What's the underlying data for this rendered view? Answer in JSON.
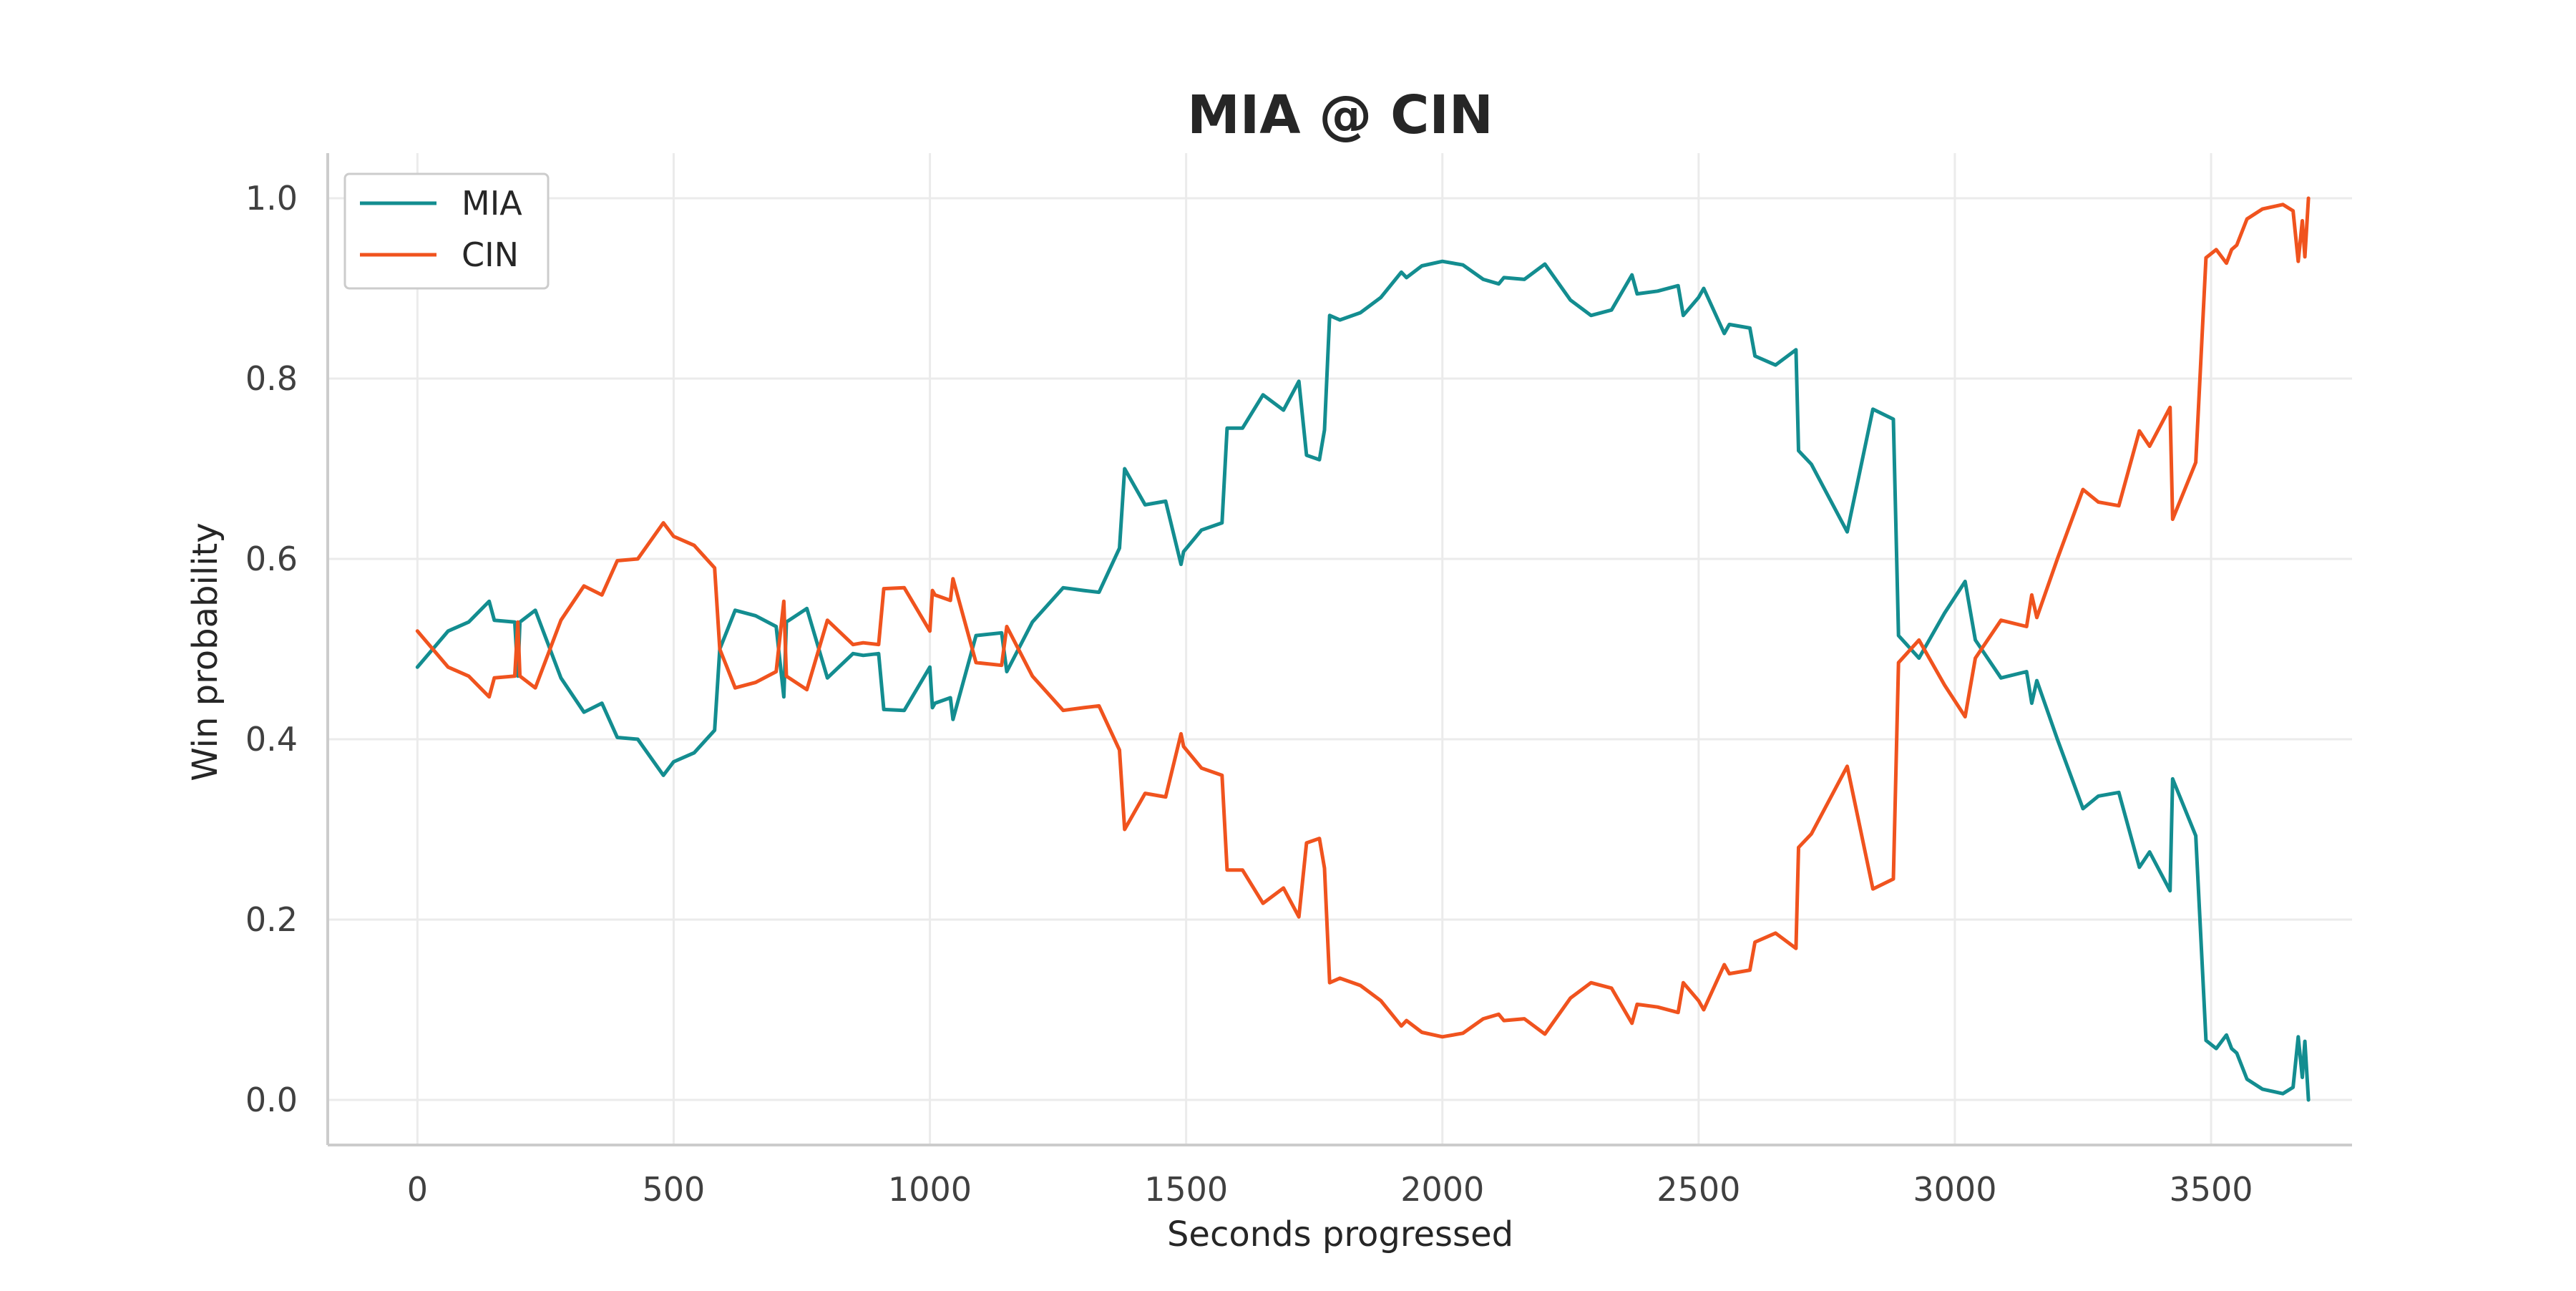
{
  "chart_data": {
    "type": "line",
    "title": "MIA @ CIN",
    "xlabel": "Seconds progressed",
    "ylabel": "Win probability",
    "xlim": [
      -175,
      3775
    ],
    "ylim": [
      -0.05,
      1.05
    ],
    "x_ticks": [
      0,
      500,
      1000,
      1500,
      2000,
      2500,
      3000,
      3500
    ],
    "x_tick_labels": [
      "0",
      "500",
      "1000",
      "1500",
      "2000",
      "2500",
      "3000",
      "3500"
    ],
    "y_ticks": [
      0.0,
      0.2,
      0.4,
      0.6,
      0.8,
      1.0
    ],
    "y_tick_labels": [
      "0.0",
      "0.2",
      "0.4",
      "0.6",
      "0.8",
      "1.0"
    ],
    "grid": true,
    "legend_position": "top-left",
    "series": [
      {
        "name": "MIA",
        "color": "#138d90",
        "points": [
          [
            0,
            0.48
          ],
          [
            60,
            0.52
          ],
          [
            100,
            0.53
          ],
          [
            140,
            0.553
          ],
          [
            150,
            0.532
          ],
          [
            190,
            0.53
          ],
          [
            196,
            0.47
          ],
          [
            200,
            0.53
          ],
          [
            230,
            0.543
          ],
          [
            280,
            0.468
          ],
          [
            325,
            0.43
          ],
          [
            360,
            0.44
          ],
          [
            390,
            0.402
          ],
          [
            430,
            0.4
          ],
          [
            480,
            0.36
          ],
          [
            500,
            0.375
          ],
          [
            540,
            0.385
          ],
          [
            580,
            0.41
          ],
          [
            590,
            0.5
          ],
          [
            620,
            0.543
          ],
          [
            660,
            0.537
          ],
          [
            700,
            0.525
          ],
          [
            715,
            0.447
          ],
          [
            720,
            0.53
          ],
          [
            760,
            0.545
          ],
          [
            800,
            0.468
          ],
          [
            850,
            0.495
          ],
          [
            870,
            0.493
          ],
          [
            900,
            0.495
          ],
          [
            910,
            0.433
          ],
          [
            950,
            0.432
          ],
          [
            1000,
            0.48
          ],
          [
            1005,
            0.435
          ],
          [
            1010,
            0.44
          ],
          [
            1040,
            0.446
          ],
          [
            1045,
            0.422
          ],
          [
            1090,
            0.515
          ],
          [
            1140,
            0.518
          ],
          [
            1150,
            0.475
          ],
          [
            1200,
            0.53
          ],
          [
            1260,
            0.568
          ],
          [
            1300,
            0.565
          ],
          [
            1330,
            0.563
          ],
          [
            1370,
            0.612
          ],
          [
            1380,
            0.7
          ],
          [
            1420,
            0.66
          ],
          [
            1460,
            0.664
          ],
          [
            1490,
            0.594
          ],
          [
            1495,
            0.608
          ],
          [
            1530,
            0.632
          ],
          [
            1570,
            0.64
          ],
          [
            1580,
            0.745
          ],
          [
            1610,
            0.745
          ],
          [
            1650,
            0.782
          ],
          [
            1690,
            0.765
          ],
          [
            1720,
            0.797
          ],
          [
            1735,
            0.715
          ],
          [
            1760,
            0.71
          ],
          [
            1770,
            0.743
          ],
          [
            1780,
            0.87
          ],
          [
            1800,
            0.865
          ],
          [
            1840,
            0.873
          ],
          [
            1880,
            0.89
          ],
          [
            1920,
            0.918
          ],
          [
            1930,
            0.912
          ],
          [
            1960,
            0.925
          ],
          [
            2000,
            0.93
          ],
          [
            2040,
            0.926
          ],
          [
            2080,
            0.91
          ],
          [
            2110,
            0.905
          ],
          [
            2120,
            0.912
          ],
          [
            2160,
            0.91
          ],
          [
            2200,
            0.927
          ],
          [
            2250,
            0.887
          ],
          [
            2290,
            0.87
          ],
          [
            2330,
            0.876
          ],
          [
            2370,
            0.915
          ],
          [
            2380,
            0.894
          ],
          [
            2420,
            0.897
          ],
          [
            2460,
            0.903
          ],
          [
            2470,
            0.87
          ],
          [
            2500,
            0.89
          ],
          [
            2510,
            0.9
          ],
          [
            2550,
            0.85
          ],
          [
            2560,
            0.86
          ],
          [
            2600,
            0.856
          ],
          [
            2610,
            0.825
          ],
          [
            2650,
            0.815
          ],
          [
            2690,
            0.832
          ],
          [
            2695,
            0.72
          ],
          [
            2720,
            0.705
          ],
          [
            2790,
            0.63
          ],
          [
            2840,
            0.766
          ],
          [
            2880,
            0.755
          ],
          [
            2890,
            0.515
          ],
          [
            2930,
            0.49
          ],
          [
            2980,
            0.54
          ],
          [
            3020,
            0.575
          ],
          [
            3040,
            0.51
          ],
          [
            3090,
            0.468
          ],
          [
            3140,
            0.475
          ],
          [
            3150,
            0.44
          ],
          [
            3160,
            0.465
          ],
          [
            3200,
            0.4
          ],
          [
            3250,
            0.323
          ],
          [
            3280,
            0.337
          ],
          [
            3320,
            0.341
          ],
          [
            3360,
            0.258
          ],
          [
            3380,
            0.275
          ],
          [
            3420,
            0.232
          ],
          [
            3425,
            0.356
          ],
          [
            3470,
            0.293
          ],
          [
            3490,
            0.066
          ],
          [
            3510,
            0.057
          ],
          [
            3530,
            0.072
          ],
          [
            3540,
            0.057
          ],
          [
            3550,
            0.052
          ],
          [
            3570,
            0.023
          ],
          [
            3600,
            0.012
          ],
          [
            3640,
            0.007
          ],
          [
            3660,
            0.014
          ],
          [
            3670,
            0.07
          ],
          [
            3678,
            0.025
          ],
          [
            3683,
            0.065
          ],
          [
            3690,
            0.0
          ]
        ]
      },
      {
        "name": "CIN",
        "color": "#f0531e",
        "points": [
          [
            0,
            0.52
          ],
          [
            60,
            0.48
          ],
          [
            100,
            0.47
          ],
          [
            140,
            0.447
          ],
          [
            150,
            0.468
          ],
          [
            190,
            0.47
          ],
          [
            196,
            0.53
          ],
          [
            200,
            0.47
          ],
          [
            230,
            0.457
          ],
          [
            280,
            0.532
          ],
          [
            325,
            0.57
          ],
          [
            360,
            0.56
          ],
          [
            390,
            0.598
          ],
          [
            430,
            0.6
          ],
          [
            480,
            0.64
          ],
          [
            500,
            0.625
          ],
          [
            540,
            0.615
          ],
          [
            580,
            0.59
          ],
          [
            590,
            0.5
          ],
          [
            620,
            0.457
          ],
          [
            660,
            0.463
          ],
          [
            700,
            0.475
          ],
          [
            715,
            0.553
          ],
          [
            720,
            0.47
          ],
          [
            760,
            0.455
          ],
          [
            800,
            0.532
          ],
          [
            850,
            0.505
          ],
          [
            870,
            0.507
          ],
          [
            900,
            0.505
          ],
          [
            910,
            0.567
          ],
          [
            950,
            0.568
          ],
          [
            1000,
            0.52
          ],
          [
            1005,
            0.565
          ],
          [
            1010,
            0.56
          ],
          [
            1040,
            0.554
          ],
          [
            1045,
            0.578
          ],
          [
            1090,
            0.485
          ],
          [
            1140,
            0.482
          ],
          [
            1150,
            0.525
          ],
          [
            1200,
            0.47
          ],
          [
            1260,
            0.432
          ],
          [
            1300,
            0.435
          ],
          [
            1330,
            0.437
          ],
          [
            1370,
            0.388
          ],
          [
            1380,
            0.3
          ],
          [
            1420,
            0.34
          ],
          [
            1460,
            0.336
          ],
          [
            1490,
            0.406
          ],
          [
            1495,
            0.392
          ],
          [
            1530,
            0.368
          ],
          [
            1570,
            0.36
          ],
          [
            1580,
            0.255
          ],
          [
            1610,
            0.255
          ],
          [
            1650,
            0.218
          ],
          [
            1690,
            0.235
          ],
          [
            1720,
            0.203
          ],
          [
            1735,
            0.285
          ],
          [
            1760,
            0.29
          ],
          [
            1770,
            0.257
          ],
          [
            1780,
            0.13
          ],
          [
            1800,
            0.135
          ],
          [
            1840,
            0.127
          ],
          [
            1880,
            0.11
          ],
          [
            1920,
            0.082
          ],
          [
            1930,
            0.088
          ],
          [
            1960,
            0.075
          ],
          [
            2000,
            0.07
          ],
          [
            2040,
            0.074
          ],
          [
            2080,
            0.09
          ],
          [
            2110,
            0.095
          ],
          [
            2120,
            0.088
          ],
          [
            2160,
            0.09
          ],
          [
            2200,
            0.073
          ],
          [
            2250,
            0.113
          ],
          [
            2290,
            0.13
          ],
          [
            2330,
            0.124
          ],
          [
            2370,
            0.085
          ],
          [
            2380,
            0.106
          ],
          [
            2420,
            0.103
          ],
          [
            2460,
            0.097
          ],
          [
            2470,
            0.13
          ],
          [
            2500,
            0.11
          ],
          [
            2510,
            0.1
          ],
          [
            2550,
            0.15
          ],
          [
            2560,
            0.14
          ],
          [
            2600,
            0.144
          ],
          [
            2610,
            0.175
          ],
          [
            2650,
            0.185
          ],
          [
            2690,
            0.168
          ],
          [
            2695,
            0.28
          ],
          [
            2720,
            0.295
          ],
          [
            2790,
            0.37
          ],
          [
            2840,
            0.234
          ],
          [
            2880,
            0.245
          ],
          [
            2890,
            0.485
          ],
          [
            2930,
            0.51
          ],
          [
            2980,
            0.46
          ],
          [
            3020,
            0.425
          ],
          [
            3040,
            0.49
          ],
          [
            3090,
            0.532
          ],
          [
            3140,
            0.525
          ],
          [
            3150,
            0.56
          ],
          [
            3160,
            0.535
          ],
          [
            3200,
            0.6
          ],
          [
            3250,
            0.677
          ],
          [
            3280,
            0.663
          ],
          [
            3320,
            0.659
          ],
          [
            3360,
            0.742
          ],
          [
            3380,
            0.725
          ],
          [
            3420,
            0.768
          ],
          [
            3425,
            0.644
          ],
          [
            3470,
            0.707
          ],
          [
            3490,
            0.934
          ],
          [
            3510,
            0.943
          ],
          [
            3530,
            0.928
          ],
          [
            3540,
            0.943
          ],
          [
            3550,
            0.948
          ],
          [
            3570,
            0.977
          ],
          [
            3600,
            0.988
          ],
          [
            3640,
            0.993
          ],
          [
            3660,
            0.986
          ],
          [
            3670,
            0.93
          ],
          [
            3678,
            0.975
          ],
          [
            3683,
            0.935
          ],
          [
            3690,
            1.0
          ]
        ]
      }
    ]
  }
}
